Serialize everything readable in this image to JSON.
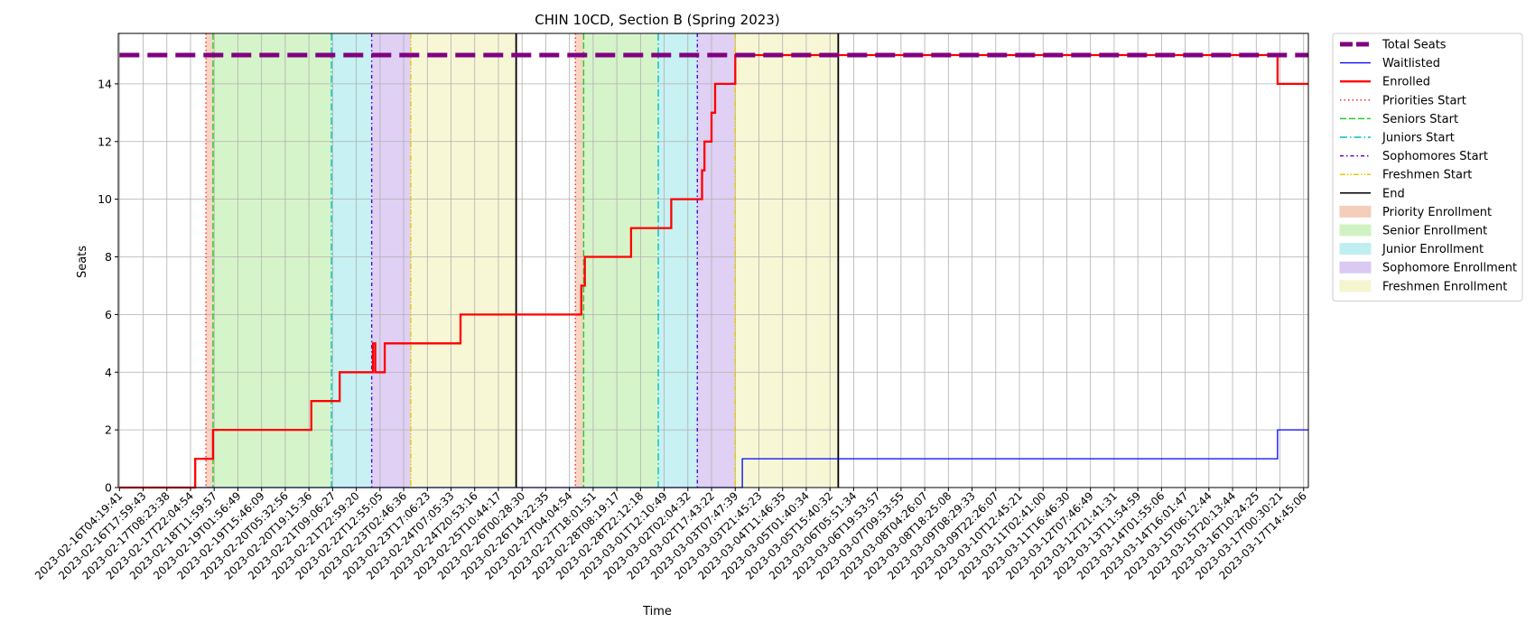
{
  "chart_data": {
    "type": "line",
    "title": "CHIN 10CD, Section B (Spring 2023)",
    "xlabel": "Time",
    "ylabel": "Seats",
    "ylim": [
      0,
      15.75
    ],
    "yticks": [
      0,
      2,
      4,
      6,
      8,
      10,
      12,
      14
    ],
    "grid": true,
    "legend_position": "outside-right",
    "x_ticks": [
      "2023-02-16T04:19:41",
      "2023-02-16T17:59:43",
      "2023-02-17T08:23:38",
      "2023-02-17T22:04:54",
      "2023-02-18T11:59:57",
      "2023-02-19T01:56:49",
      "2023-02-19T15:46:09",
      "2023-02-20T05:32:56",
      "2023-02-20T19:15:36",
      "2023-02-21T09:06:27",
      "2023-02-21T22:59:20",
      "2023-02-22T12:55:05",
      "2023-02-23T02:46:36",
      "2023-02-23T17:06:23",
      "2023-02-24T07:05:33",
      "2023-02-24T20:53:16",
      "2023-02-25T10:44:17",
      "2023-02-26T00:28:30",
      "2023-02-26T14:22:35",
      "2023-02-27T04:04:54",
      "2023-02-27T18:01:51",
      "2023-02-28T08:19:17",
      "2023-02-28T22:12:18",
      "2023-03-01T12:10:49",
      "2023-03-02T02:04:32",
      "2023-03-02T17:43:22",
      "2023-03-03T07:47:39",
      "2023-03-03T21:45:23",
      "2023-03-04T11:46:35",
      "2023-03-05T01:40:34",
      "2023-03-05T15:40:32",
      "2023-03-06T05:51:34",
      "2023-03-06T19:53:57",
      "2023-03-07T09:53:55",
      "2023-03-08T04:26:07",
      "2023-03-08T18:25:08",
      "2023-03-09T08:29:33",
      "2023-03-09T22:26:07",
      "2023-03-10T12:45:21",
      "2023-03-11T02:41:00",
      "2023-03-11T16:46:30",
      "2023-03-12T07:46:49",
      "2023-03-12T21:41:31",
      "2023-03-13T11:54:59",
      "2023-03-14T01:55:06",
      "2023-03-14T16:01:47",
      "2023-03-15T06:12:44",
      "2023-03-15T20:13:44",
      "2023-03-16T10:24:25",
      "2023-03-17T00:30:21",
      "2023-03-17T14:45:06"
    ],
    "x_range_ticks": [
      0,
      50.2
    ],
    "series": [
      {
        "name": "Total Seats",
        "color": "#800080",
        "style": "dashed-thick",
        "points": [
          [
            0,
            15
          ],
          [
            50.2,
            15
          ]
        ]
      },
      {
        "name": "Waitlisted",
        "color": "#0000ff",
        "style": "solid-thin",
        "points": [
          [
            0,
            0
          ],
          [
            26.3,
            0
          ],
          [
            26.3,
            1
          ],
          [
            48.9,
            1
          ],
          [
            48.9,
            2
          ],
          [
            50.2,
            2
          ]
        ]
      },
      {
        "name": "Enrolled",
        "color": "#ff0000",
        "style": "solid-thick",
        "points": [
          [
            0,
            0
          ],
          [
            3.2,
            0
          ],
          [
            3.2,
            1
          ],
          [
            3.95,
            1
          ],
          [
            3.95,
            2
          ],
          [
            8.1,
            2
          ],
          [
            8.1,
            3
          ],
          [
            9.3,
            3
          ],
          [
            9.3,
            4
          ],
          [
            10.7,
            4
          ],
          [
            10.7,
            5
          ],
          [
            10.8,
            5
          ],
          [
            10.8,
            4
          ],
          [
            11.2,
            4
          ],
          [
            11.2,
            5
          ],
          [
            14.4,
            5
          ],
          [
            14.4,
            6
          ],
          [
            19.5,
            6
          ],
          [
            19.5,
            7
          ],
          [
            19.65,
            7
          ],
          [
            19.65,
            8
          ],
          [
            21.6,
            8
          ],
          [
            21.6,
            9
          ],
          [
            23.3,
            9
          ],
          [
            23.3,
            10
          ],
          [
            24.6,
            10
          ],
          [
            24.6,
            11
          ],
          [
            24.7,
            11
          ],
          [
            24.7,
            12
          ],
          [
            25.0,
            12
          ],
          [
            25.0,
            13
          ],
          [
            25.15,
            13
          ],
          [
            25.15,
            14
          ],
          [
            26.0,
            14
          ],
          [
            26.0,
            15
          ],
          [
            48.9,
            15
          ],
          [
            48.9,
            14
          ],
          [
            50.2,
            14
          ]
        ]
      }
    ],
    "event_lines": [
      {
        "name": "Priorities Start",
        "color": "#ff2a2a",
        "style": "dotted",
        "x": [
          3.65,
          19.25
        ]
      },
      {
        "name": "Seniors Start",
        "color": "#22cc22",
        "style": "dashed",
        "x": [
          3.95,
          19.6
        ]
      },
      {
        "name": "Juniors Start",
        "color": "#00bfbf",
        "style": "dashdot",
        "x": [
          8.95,
          22.75
        ]
      },
      {
        "name": "Sophomores Start",
        "color": "#5500dd",
        "style": "densedashdot",
        "x": [
          10.65,
          24.4
        ]
      },
      {
        "name": "Freshmen Start",
        "color": "#e6c800",
        "style": "dashdotdot",
        "x": [
          12.3,
          26.0
        ]
      },
      {
        "name": "End",
        "color": "#000000",
        "style": "solid",
        "x": [
          16.75,
          30.35
        ]
      }
    ],
    "shaded_periods": [
      {
        "name": "Priority Enrollment",
        "color": "#f4c6b0",
        "ranges": [
          [
            3.65,
            3.95
          ],
          [
            19.25,
            19.6
          ]
        ]
      },
      {
        "name": "Senior Enrollment",
        "color": "#c8f0b8",
        "ranges": [
          [
            3.95,
            8.95
          ],
          [
            19.6,
            22.75
          ]
        ]
      },
      {
        "name": "Junior Enrollment",
        "color": "#b4ecee",
        "ranges": [
          [
            8.95,
            10.65
          ],
          [
            22.75,
            24.4
          ]
        ]
      },
      {
        "name": "Sophomore Enrollment",
        "color": "#d4c0f0",
        "ranges": [
          [
            10.65,
            12.3
          ],
          [
            24.4,
            26.0
          ]
        ]
      },
      {
        "name": "Freshmen Enrollment",
        "color": "#f4f4c8",
        "ranges": [
          [
            12.3,
            16.75
          ],
          [
            26.0,
            30.35
          ]
        ]
      }
    ]
  }
}
